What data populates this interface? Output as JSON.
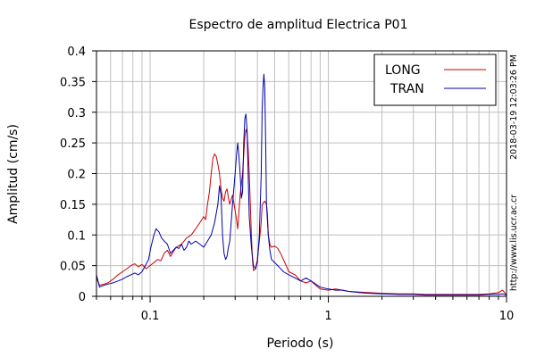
{
  "chart_data": {
    "type": "line",
    "title": "Espectro de amplitud Electrica P01",
    "xlabel": "Periodo (s)",
    "ylabel": "Amplitud (cm/s)",
    "xscale": "log",
    "xlim": [
      0.05,
      10
    ],
    "ylim": [
      0,
      0.4
    ],
    "grid": true,
    "legend_position": "top-right",
    "x_tick_labels": [
      "0.1",
      "1",
      "10"
    ],
    "y_tick_labels": [
      "0",
      "0.05",
      "0.1",
      "0.15",
      "0.2",
      "0.25",
      "0.3",
      "0.35",
      "0.4"
    ],
    "side_labels": [
      "2018-03-19 12:03:26 PM",
      "http://www.lis.ucr.ac.cr"
    ],
    "series": [
      {
        "name": "LONG",
        "color": "#cc0000",
        "points": [
          [
            0.05,
            0.03
          ],
          [
            0.052,
            0.018
          ],
          [
            0.055,
            0.02
          ],
          [
            0.058,
            0.022
          ],
          [
            0.062,
            0.028
          ],
          [
            0.066,
            0.035
          ],
          [
            0.07,
            0.04
          ],
          [
            0.074,
            0.045
          ],
          [
            0.078,
            0.05
          ],
          [
            0.082,
            0.053
          ],
          [
            0.086,
            0.048
          ],
          [
            0.09,
            0.052
          ],
          [
            0.095,
            0.045
          ],
          [
            0.1,
            0.05
          ],
          [
            0.105,
            0.055
          ],
          [
            0.11,
            0.06
          ],
          [
            0.115,
            0.058
          ],
          [
            0.12,
            0.07
          ],
          [
            0.125,
            0.075
          ],
          [
            0.13,
            0.065
          ],
          [
            0.14,
            0.08
          ],
          [
            0.15,
            0.085
          ],
          [
            0.16,
            0.095
          ],
          [
            0.17,
            0.1
          ],
          [
            0.18,
            0.11
          ],
          [
            0.19,
            0.12
          ],
          [
            0.2,
            0.13
          ],
          [
            0.205,
            0.125
          ],
          [
            0.21,
            0.15
          ],
          [
            0.215,
            0.17
          ],
          [
            0.22,
            0.2
          ],
          [
            0.225,
            0.225
          ],
          [
            0.23,
            0.232
          ],
          [
            0.235,
            0.228
          ],
          [
            0.24,
            0.215
          ],
          [
            0.245,
            0.2
          ],
          [
            0.25,
            0.175
          ],
          [
            0.255,
            0.16
          ],
          [
            0.26,
            0.155
          ],
          [
            0.265,
            0.17
          ],
          [
            0.27,
            0.175
          ],
          [
            0.275,
            0.16
          ],
          [
            0.28,
            0.15
          ],
          [
            0.29,
            0.165
          ],
          [
            0.3,
            0.14
          ],
          [
            0.305,
            0.125
          ],
          [
            0.31,
            0.11
          ],
          [
            0.32,
            0.165
          ],
          [
            0.33,
            0.2
          ],
          [
            0.335,
            0.23
          ],
          [
            0.34,
            0.26
          ],
          [
            0.345,
            0.272
          ],
          [
            0.35,
            0.265
          ],
          [
            0.355,
            0.24
          ],
          [
            0.36,
            0.2
          ],
          [
            0.365,
            0.15
          ],
          [
            0.37,
            0.1
          ],
          [
            0.375,
            0.06
          ],
          [
            0.38,
            0.042
          ],
          [
            0.39,
            0.045
          ],
          [
            0.4,
            0.06
          ],
          [
            0.41,
            0.09
          ],
          [
            0.42,
            0.12
          ],
          [
            0.425,
            0.148
          ],
          [
            0.43,
            0.152
          ],
          [
            0.44,
            0.155
          ],
          [
            0.45,
            0.15
          ],
          [
            0.455,
            0.135
          ],
          [
            0.46,
            0.1
          ],
          [
            0.47,
            0.085
          ],
          [
            0.48,
            0.08
          ],
          [
            0.5,
            0.082
          ],
          [
            0.52,
            0.078
          ],
          [
            0.54,
            0.07
          ],
          [
            0.56,
            0.06
          ],
          [
            0.58,
            0.05
          ],
          [
            0.6,
            0.04
          ],
          [
            0.65,
            0.035
          ],
          [
            0.7,
            0.025
          ],
          [
            0.75,
            0.022
          ],
          [
            0.8,
            0.025
          ],
          [
            0.85,
            0.018
          ],
          [
            0.9,
            0.012
          ],
          [
            1.0,
            0.01
          ],
          [
            1.1,
            0.012
          ],
          [
            1.2,
            0.01
          ],
          [
            1.3,
            0.008
          ],
          [
            1.5,
            0.007
          ],
          [
            1.7,
            0.006
          ],
          [
            2.0,
            0.005
          ],
          [
            2.5,
            0.004
          ],
          [
            3.0,
            0.004
          ],
          [
            3.5,
            0.003
          ],
          [
            4.0,
            0.003
          ],
          [
            5.0,
            0.003
          ],
          [
            6.0,
            0.003
          ],
          [
            7.0,
            0.003
          ],
          [
            8.0,
            0.004
          ],
          [
            9.0,
            0.006
          ],
          [
            9.5,
            0.01
          ],
          [
            10.0,
            0.002
          ]
        ]
      },
      {
        "name": "TRAN",
        "color": "#0000aa",
        "points": [
          [
            0.05,
            0.035
          ],
          [
            0.052,
            0.015
          ],
          [
            0.055,
            0.018
          ],
          [
            0.058,
            0.02
          ],
          [
            0.062,
            0.022
          ],
          [
            0.066,
            0.025
          ],
          [
            0.07,
            0.028
          ],
          [
            0.074,
            0.032
          ],
          [
            0.078,
            0.035
          ],
          [
            0.082,
            0.038
          ],
          [
            0.086,
            0.035
          ],
          [
            0.09,
            0.04
          ],
          [
            0.094,
            0.05
          ],
          [
            0.098,
            0.06
          ],
          [
            0.101,
            0.08
          ],
          [
            0.105,
            0.1
          ],
          [
            0.108,
            0.11
          ],
          [
            0.112,
            0.105
          ],
          [
            0.116,
            0.095
          ],
          [
            0.12,
            0.09
          ],
          [
            0.125,
            0.085
          ],
          [
            0.13,
            0.07
          ],
          [
            0.135,
            0.075
          ],
          [
            0.14,
            0.08
          ],
          [
            0.145,
            0.078
          ],
          [
            0.15,
            0.085
          ],
          [
            0.155,
            0.075
          ],
          [
            0.16,
            0.08
          ],
          [
            0.165,
            0.09
          ],
          [
            0.17,
            0.085
          ],
          [
            0.18,
            0.09
          ],
          [
            0.19,
            0.085
          ],
          [
            0.2,
            0.08
          ],
          [
            0.21,
            0.09
          ],
          [
            0.22,
            0.1
          ],
          [
            0.23,
            0.12
          ],
          [
            0.24,
            0.15
          ],
          [
            0.245,
            0.18
          ],
          [
            0.25,
            0.165
          ],
          [
            0.255,
            0.1
          ],
          [
            0.26,
            0.07
          ],
          [
            0.265,
            0.06
          ],
          [
            0.27,
            0.065
          ],
          [
            0.275,
            0.08
          ],
          [
            0.28,
            0.09
          ],
          [
            0.29,
            0.15
          ],
          [
            0.3,
            0.2
          ],
          [
            0.305,
            0.23
          ],
          [
            0.31,
            0.25
          ],
          [
            0.315,
            0.23
          ],
          [
            0.32,
            0.2
          ],
          [
            0.325,
            0.16
          ],
          [
            0.33,
            0.17
          ],
          [
            0.335,
            0.25
          ],
          [
            0.34,
            0.29
          ],
          [
            0.345,
            0.297
          ],
          [
            0.35,
            0.27
          ],
          [
            0.355,
            0.2
          ],
          [
            0.36,
            0.13
          ],
          [
            0.37,
            0.08
          ],
          [
            0.38,
            0.05
          ],
          [
            0.39,
            0.045
          ],
          [
            0.4,
            0.055
          ],
          [
            0.41,
            0.1
          ],
          [
            0.42,
            0.2
          ],
          [
            0.425,
            0.3
          ],
          [
            0.43,
            0.34
          ],
          [
            0.435,
            0.362
          ],
          [
            0.44,
            0.34
          ],
          [
            0.445,
            0.25
          ],
          [
            0.45,
            0.15
          ],
          [
            0.46,
            0.1
          ],
          [
            0.47,
            0.075
          ],
          [
            0.48,
            0.06
          ],
          [
            0.5,
            0.055
          ],
          [
            0.52,
            0.05
          ],
          [
            0.54,
            0.045
          ],
          [
            0.56,
            0.04
          ],
          [
            0.6,
            0.035
          ],
          [
            0.65,
            0.03
          ],
          [
            0.7,
            0.025
          ],
          [
            0.75,
            0.03
          ],
          [
            0.8,
            0.025
          ],
          [
            0.85,
            0.02
          ],
          [
            0.9,
            0.015
          ],
          [
            1.0,
            0.012
          ],
          [
            1.1,
            0.01
          ],
          [
            1.2,
            0.01
          ],
          [
            1.3,
            0.008
          ],
          [
            1.5,
            0.006
          ],
          [
            1.7,
            0.005
          ],
          [
            2.0,
            0.004
          ],
          [
            2.5,
            0.003
          ],
          [
            3.0,
            0.003
          ],
          [
            3.5,
            0.002
          ],
          [
            4.0,
            0.002
          ],
          [
            5.0,
            0.002
          ],
          [
            6.0,
            0.002
          ],
          [
            7.0,
            0.002
          ],
          [
            8.0,
            0.003
          ],
          [
            9.0,
            0.003
          ],
          [
            9.5,
            0.004
          ],
          [
            10.0,
            0.002
          ]
        ]
      }
    ]
  }
}
